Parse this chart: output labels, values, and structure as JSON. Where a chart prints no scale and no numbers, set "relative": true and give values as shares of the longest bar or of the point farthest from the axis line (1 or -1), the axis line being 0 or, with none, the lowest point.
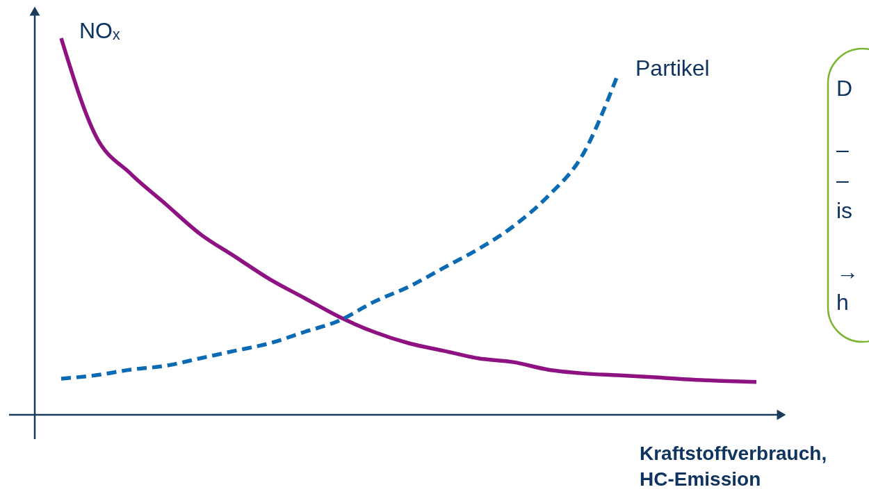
{
  "chart_data": {
    "type": "line",
    "relative": true,
    "xlabel": "Kraftstoffverbrauch,\nHC-Emission",
    "categories": [
      null,
      null,
      null,
      null,
      null,
      null,
      null,
      null,
      null,
      null,
      null,
      null,
      null,
      null,
      null,
      null,
      null,
      null,
      null,
      null,
      null
    ],
    "series": [
      {
        "name": "NOₓ",
        "color": "#8e1282",
        "line_style": "solid",
        "values": [
          1.0,
          0.74,
          0.64,
          0.56,
          0.48,
          0.42,
          0.36,
          0.31,
          0.26,
          0.22,
          0.19,
          0.17,
          0.15,
          0.14,
          0.12,
          0.11,
          0.105,
          0.1,
          0.094,
          0.09,
          0.087
        ]
      },
      {
        "name": "Partikel",
        "color": "#0a6ab4",
        "line_style": "dashed",
        "values": [
          0.096,
          0.105,
          0.12,
          0.13,
          0.15,
          0.17,
          0.19,
          0.22,
          0.25,
          0.3,
          0.34,
          0.39,
          0.44,
          0.5,
          0.58,
          0.69,
          0.9,
          null,
          null,
          null,
          null
        ]
      }
    ],
    "annotations": [
      "D",
      "–",
      "–",
      "is",
      "→",
      "h"
    ]
  }
}
